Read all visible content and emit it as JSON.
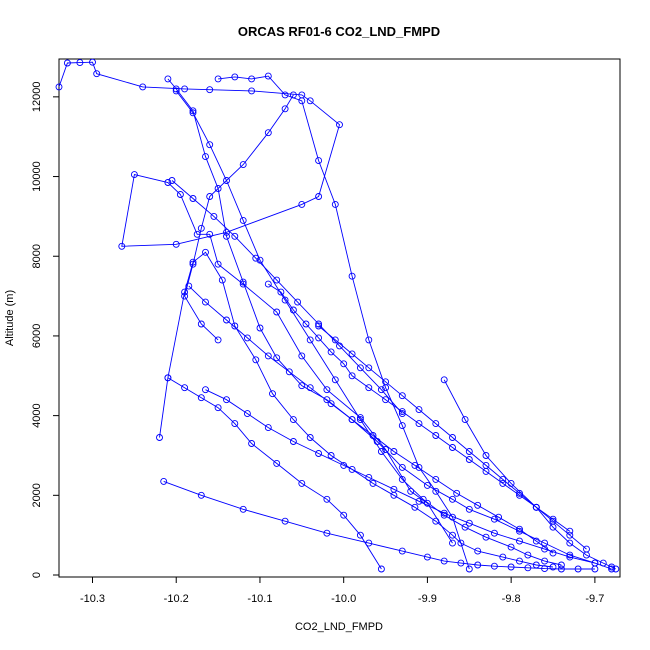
{
  "chart_data": {
    "type": "line",
    "title": "ORCAS RF01-6 CO2_LND_FMPD",
    "xlabel": "CO2_LND_FMPD",
    "ylabel": "Altitude (m)",
    "xlim": [
      -10.34,
      -9.67
    ],
    "ylim": [
      -50,
      12950
    ],
    "x_ticks": [
      -10.3,
      -10.2,
      -10.1,
      -10.0,
      -9.9,
      -9.8,
      -9.7
    ],
    "x_tick_labels": [
      "-10.3",
      "-10.2",
      "-10.1",
      "-10.0",
      "-9.9",
      "-9.8",
      "-9.7"
    ],
    "y_ticks": [
      0,
      2000,
      4000,
      6000,
      8000,
      10000,
      12000
    ],
    "y_tick_labels": [
      "0",
      "2000",
      "4000",
      "6000",
      "8000",
      "10000",
      "12000"
    ],
    "grid": false,
    "legend": "none",
    "series_color": "#0000ff",
    "marker": "open-circle",
    "series": [
      {
        "x": [
          -10.34,
          -10.33,
          -10.315,
          -10.3,
          -10.295,
          -10.24,
          -10.19,
          -10.16,
          -10.11,
          -10.05,
          -10.04,
          -10.005,
          -10.03,
          -10.05,
          -10.14,
          -10.2,
          -10.265,
          -10.25,
          -10.21,
          -10.195,
          -10.175,
          -10.16,
          -10.15,
          -10.12,
          -10.08,
          -10.05,
          -10.02,
          -9.98,
          -9.95,
          -9.92,
          -9.9,
          -9.87
        ],
        "y": [
          12250,
          12850,
          12860,
          12870,
          12580,
          12250,
          12200,
          12180,
          12150,
          12050,
          11900,
          11300,
          9500,
          9300,
          8600,
          8300,
          8250,
          10050,
          9850,
          9550,
          8550,
          8550,
          7800,
          7300,
          6600,
          5500,
          4650,
          3950,
          3150,
          2100,
          1800,
          800
        ]
      },
      {
        "x": [
          -10.21,
          -10.2,
          -10.18,
          -10.165,
          -10.15,
          -10.14,
          -10.12,
          -10.1,
          -10.08,
          -10.05,
          -10.02,
          -9.99,
          -9.96,
          -9.93,
          -9.9,
          -9.87,
          -9.85,
          -9.82,
          -9.79,
          -9.76,
          -9.73,
          -9.7,
          -9.68
        ],
        "y": [
          12450,
          12200,
          11650,
          10500,
          9700,
          8500,
          7350,
          6200,
          5450,
          4750,
          4400,
          3900,
          3350,
          2700,
          2250,
          1900,
          1650,
          1400,
          1100,
          800,
          500,
          300,
          150
        ]
      },
      {
        "x": [
          -10.22,
          -10.21,
          -10.19,
          -10.18,
          -10.165,
          -10.145,
          -10.13,
          -10.105,
          -10.085,
          -10.06,
          -10.04,
          -10.015,
          -9.99,
          -9.965,
          -9.94,
          -9.915,
          -9.89,
          -9.87,
          -9.86,
          -9.84,
          -9.81,
          -9.79,
          -9.77,
          -9.75
        ],
        "y": [
          3450,
          4950,
          7100,
          7850,
          8100,
          7400,
          6250,
          5400,
          4550,
          3900,
          3450,
          3000,
          2650,
          2300,
          2000,
          1700,
          1350,
          1000,
          800,
          600,
          450,
          350,
          250,
          200
        ]
      },
      {
        "x": [
          -10.215,
          -10.17,
          -10.12,
          -10.07,
          -10.02,
          -9.97,
          -9.93,
          -9.9,
          -9.88,
          -9.86,
          -9.84,
          -9.82,
          -9.8,
          -9.78,
          -9.76,
          -9.74,
          -9.72,
          -9.7
        ],
        "y": [
          2350,
          2000,
          1650,
          1350,
          1050,
          800,
          600,
          450,
          350,
          300,
          250,
          220,
          200,
          180,
          160,
          150,
          150,
          150
        ]
      },
      {
        "x": [
          -10.2,
          -10.18,
          -10.16,
          -10.14,
          -10.12,
          -10.1,
          -10.07,
          -10.04,
          -10.01,
          -9.98,
          -9.955,
          -9.93,
          -9.905,
          -9.88,
          -9.855,
          -9.83,
          -9.8,
          -9.78,
          -9.76,
          -9.74
        ],
        "y": [
          12150,
          11600,
          10800,
          9900,
          8900,
          7900,
          6900,
          5900,
          4900,
          3900,
          3100,
          2400,
          1900,
          1500,
          1200,
          950,
          700,
          500,
          350,
          250
        ]
      },
      {
        "x": [
          -10.15,
          -10.13,
          -10.11,
          -10.09,
          -10.07,
          -10.05,
          -10.03,
          -10.01,
          -9.99,
          -9.97,
          -9.95,
          -9.93,
          -9.91,
          -9.89,
          -9.87,
          -9.85
        ],
        "y": [
          12450,
          12500,
          12450,
          12520,
          12050,
          11900,
          10400,
          9300,
          7500,
          5900,
          4700,
          3750,
          2700,
          2100,
          1450,
          150
        ]
      },
      {
        "x": [
          -10.21,
          -10.19,
          -10.17,
          -10.15,
          -10.13,
          -10.11,
          -10.08,
          -10.05,
          -10.02,
          -10.0,
          -9.98,
          -9.955
        ],
        "y": [
          4950,
          4700,
          4450,
          4200,
          3800,
          3300,
          2800,
          2300,
          1900,
          1500,
          1000,
          150
        ]
      },
      {
        "x": [
          -10.06,
          -10.07,
          -10.09,
          -10.12,
          -10.16,
          -10.17,
          -10.18,
          -10.19,
          -10.17,
          -10.15
        ],
        "y": [
          12050,
          11700,
          11100,
          10300,
          9500,
          8700,
          7800,
          7000,
          6300,
          5900
        ]
      },
      {
        "x": [
          -9.88,
          -9.855,
          -9.83,
          -9.8,
          -9.77,
          -9.75,
          -9.73,
          -9.71,
          -9.69,
          -9.68,
          -9.675
        ],
        "y": [
          4900,
          3900,
          3000,
          2300,
          1700,
          1200,
          800,
          500,
          300,
          200,
          150
        ]
      },
      {
        "x": [
          -10.09,
          -10.075,
          -10.06,
          -10.045,
          -10.03,
          -10.015,
          -10.0,
          -9.99,
          -9.97,
          -9.95,
          -9.93,
          -9.91,
          -9.89,
          -9.87,
          -9.85,
          -9.83,
          -9.81,
          -9.79,
          -9.77,
          -9.75,
          -9.73
        ],
        "y": [
          7300,
          7100,
          6650,
          6300,
          5950,
          5600,
          5300,
          5000,
          4700,
          4400,
          4100,
          3800,
          3500,
          3200,
          2900,
          2600,
          2300,
          2000,
          1700,
          1400,
          1100
        ]
      },
      {
        "x": [
          -10.165,
          -10.14,
          -10.115,
          -10.09,
          -10.06,
          -10.03,
          -10.0,
          -9.97,
          -9.94,
          -9.91,
          -9.88,
          -9.85,
          -9.82,
          -9.79,
          -9.76,
          -9.73,
          -9.7
        ],
        "y": [
          4650,
          4400,
          4050,
          3700,
          3350,
          3050,
          2750,
          2450,
          2150,
          1850,
          1550,
          1300,
          1050,
          850,
          650,
          450,
          300
        ]
      },
      {
        "x": [
          -10.185,
          -10.165,
          -10.14,
          -10.115,
          -10.09,
          -10.065,
          -10.04,
          -10.015,
          -9.99,
          -9.965,
          -9.94,
          -9.915,
          -9.89,
          -9.865,
          -9.84,
          -9.815,
          -9.79,
          -9.77,
          -9.75
        ],
        "y": [
          7250,
          6850,
          6400,
          5950,
          5500,
          5100,
          4700,
          4300,
          3900,
          3500,
          3100,
          2750,
          2400,
          2050,
          1750,
          1450,
          1150,
          850,
          550
        ]
      },
      {
        "x": [
          -10.03,
          -10.01,
          -9.99,
          -9.97,
          -9.95,
          -9.93,
          -9.91,
          -9.89,
          -9.87,
          -9.85,
          -9.83,
          -9.81,
          -9.79,
          -9.77,
          -9.75,
          -9.73,
          -9.71
        ],
        "y": [
          6250,
          5900,
          5550,
          5200,
          4850,
          4500,
          4150,
          3800,
          3450,
          3100,
          2750,
          2400,
          2050,
          1700,
          1350,
          1000,
          650
        ]
      },
      {
        "x": [
          -10.205,
          -10.18,
          -10.155,
          -10.13,
          -10.105,
          -10.08,
          -10.055,
          -10.03,
          -10.005,
          -9.98,
          -9.955,
          -9.93
        ],
        "y": [
          9900,
          9450,
          9000,
          8500,
          7950,
          7400,
          6850,
          6300,
          5750,
          5200,
          4650,
          4050
        ]
      }
    ]
  }
}
